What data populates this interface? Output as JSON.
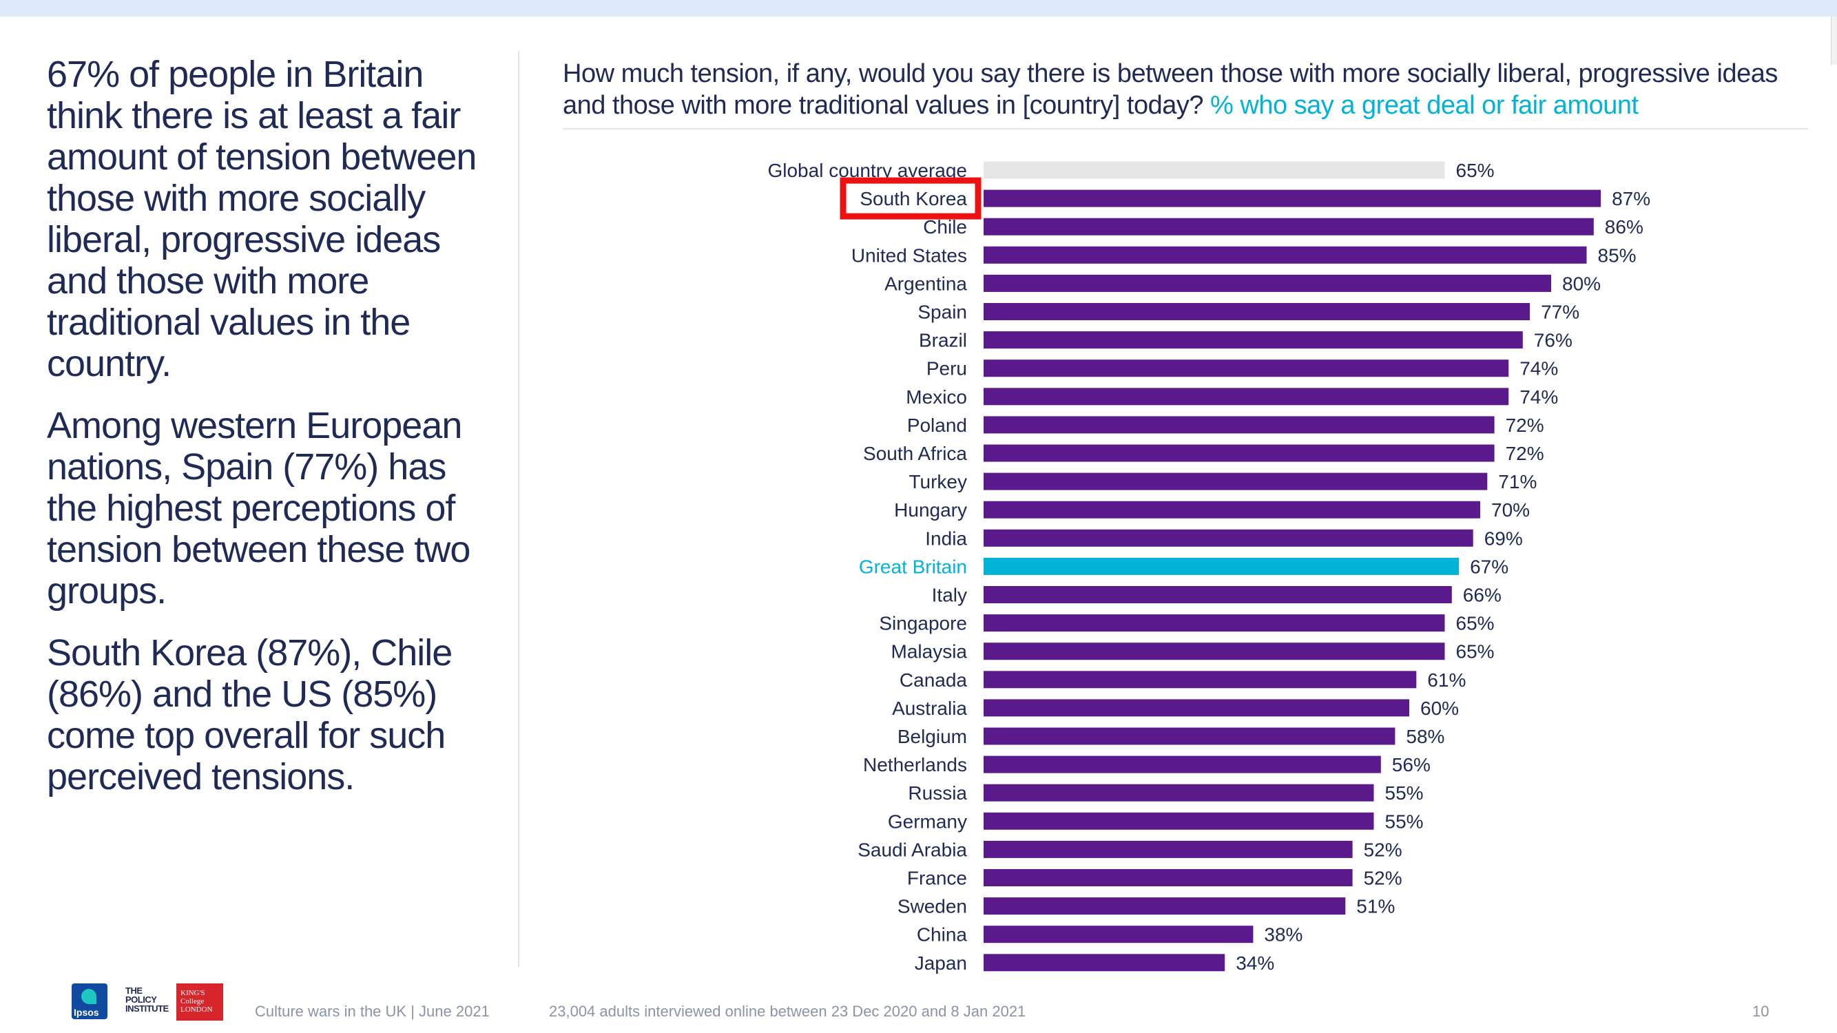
{
  "left_panel": {
    "paragraphs": [
      "67% of people in Britain think there is at least a fair amount of tension between those with more socially liberal, progressive ideas and those with more traditional values in the country.",
      "Among western European nations, Spain (77%) has the highest perceptions of tension between these two groups.",
      "South Korea (87%), Chile (86%) and the US (85%) come top overall for such perceived tensions."
    ]
  },
  "question": {
    "text": "How much tension, if any, would you say there is between those with more socially liberal, progressive ideas and those with more traditional values in [country] today?",
    "accent_text": "% who say a great deal or fair amount"
  },
  "chart_data": {
    "type": "bar",
    "orientation": "horizontal",
    "xlim": [
      0,
      100
    ],
    "categories": [
      "Global country average",
      "South Korea",
      "Chile",
      "United States",
      "Argentina",
      "Spain",
      "Brazil",
      "Peru",
      "Mexico",
      "Poland",
      "South Africa",
      "Turkey",
      "Hungary",
      "India",
      "Great Britain",
      "Italy",
      "Singapore",
      "Malaysia",
      "Canada",
      "Australia",
      "Belgium",
      "Netherlands",
      "Russia",
      "Germany",
      "Saudi Arabia",
      "France",
      "Sweden",
      "China",
      "Japan"
    ],
    "values": [
      65,
      87,
      86,
      85,
      80,
      77,
      76,
      74,
      74,
      72,
      72,
      71,
      70,
      69,
      67,
      66,
      65,
      65,
      61,
      60,
      58,
      56,
      55,
      55,
      52,
      52,
      51,
      38,
      34
    ],
    "value_labels": [
      "65%",
      "87%",
      "86%",
      "85%",
      "80%",
      "77%",
      "76%",
      "74%",
      "74%",
      "72%",
      "72%",
      "71%",
      "70%",
      "69%",
      "67%",
      "66%",
      "65%",
      "65%",
      "61%",
      "60%",
      "58%",
      "56%",
      "55%",
      "55%",
      "52%",
      "52%",
      "51%",
      "38%",
      "34%"
    ],
    "highlighted_category": "South Korea",
    "colors": {
      "default": "#5a1a8c",
      "global_average": "#e6e6e6",
      "great_britain": "#00b3d7",
      "great_britain_label": "#00b3d7",
      "label": "#1f2a56",
      "highlight_box": "#ee1111"
    }
  },
  "footer": {
    "logos": [
      "ipsos-logo",
      "policy-institute-logo",
      "kings-college-london-logo"
    ],
    "ipsos_text": "Ipsos",
    "policy_text": "THE POLICY INSTITUTE",
    "kings_text": "KING'S College LONDON",
    "left_text": "Culture wars in the UK | June 2021",
    "source_text": "23,004 adults interviewed online between 23 Dec 2020 and 8 Jan 2021",
    "page_number": "10"
  }
}
